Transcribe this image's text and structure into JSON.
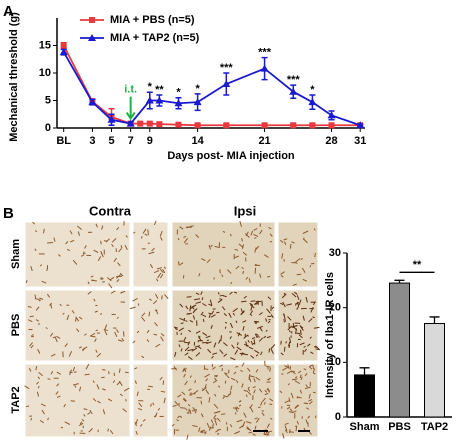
{
  "figure": {
    "panel_labels": [
      "A",
      "B"
    ],
    "image_columns": [
      "Contra",
      "Ipsi"
    ],
    "image_rows": [
      "Sham",
      "PBS",
      "TAP2"
    ]
  },
  "chart_data": [
    {
      "type": "line",
      "ylabel": "Mechanical threshold (g)",
      "xlabel": "Days post- MIA injection",
      "xlim": [
        -0.7,
        31.5
      ],
      "ylim": [
        0,
        20
      ],
      "xticks": [
        {
          "value": 0,
          "label": "BL"
        },
        3,
        5,
        7,
        9,
        14,
        21,
        28,
        31
      ],
      "yticks": [
        0,
        5,
        10,
        15
      ],
      "annotation": {
        "text": "i.t.",
        "x": 7
      },
      "series": [
        {
          "name": "MIA + PBS  (n=5)",
          "color": "#e8393f",
          "marker": "square",
          "x": [
            0,
            3,
            5,
            7,
            8,
            9,
            10,
            12,
            14,
            17,
            21,
            24,
            26,
            28,
            31
          ],
          "values": [
            15,
            4.8,
            2.0,
            0.8,
            0.8,
            0.8,
            0.7,
            0.6,
            0.5,
            0.5,
            0.5,
            0.5,
            0.5,
            0.5,
            0.5
          ],
          "errors": [
            0.5,
            0.5,
            1.5,
            0.3,
            0.2,
            0.2,
            0.2,
            0.2,
            0.2,
            0.2,
            0.2,
            0.2,
            0.2,
            0.2,
            0.2
          ]
        },
        {
          "name": "MIA + TAP2 (n=5)",
          "color": "#1a1ad0",
          "marker": "triangle",
          "x": [
            0,
            3,
            5,
            7,
            9,
            10,
            12,
            14,
            17,
            21,
            24,
            26,
            28,
            31
          ],
          "values": [
            13.8,
            4.7,
            1.5,
            0.8,
            5.0,
            5.0,
            4.5,
            4.7,
            8.0,
            10.8,
            6.6,
            4.7,
            2.3,
            0.5
          ],
          "errors": [
            0.5,
            0.5,
            1.0,
            0.3,
            1.5,
            1.0,
            1.0,
            1.5,
            2.0,
            2.0,
            1.2,
            1.3,
            0.8,
            0.2
          ],
          "stars": [
            null,
            null,
            null,
            null,
            "*",
            "**",
            "*",
            "*",
            "***",
            "***",
            "***",
            "*",
            null,
            null
          ]
        }
      ]
    },
    {
      "type": "bar",
      "ylabel": "Intensity of Iba1-IR cells",
      "categories": [
        "Sham",
        "PBS",
        "TAP2"
      ],
      "values": [
        7.7,
        24.5,
        17.1
      ],
      "errors": [
        1.3,
        0.5,
        1.2
      ],
      "colors": [
        "#000000",
        "#8c8c8c",
        "#d9d9d9"
      ],
      "ylim": [
        0,
        30
      ],
      "yticks": [
        0,
        10,
        20,
        30
      ],
      "bracket_label": "**"
    }
  ]
}
